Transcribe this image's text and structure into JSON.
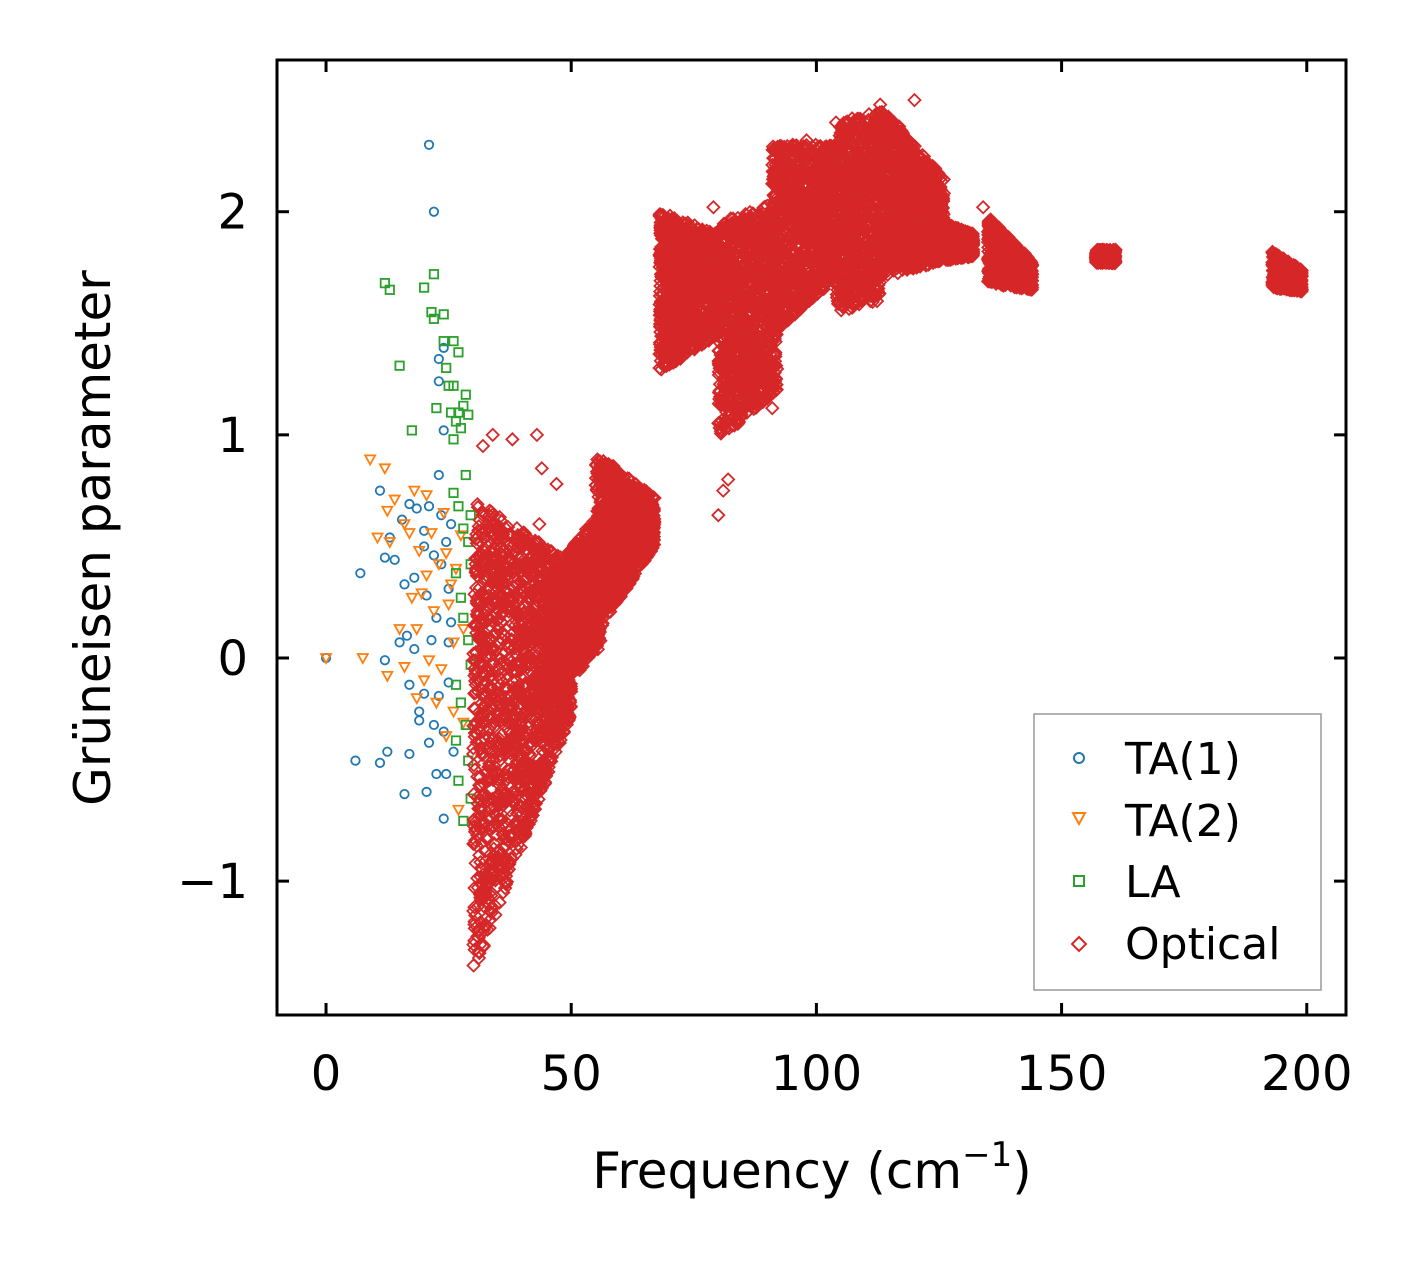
{
  "colors": {
    "TA(1)": "#1f77b4",
    "TA(2)": "#ff7f0e",
    "LA": "#2ca02c",
    "Optical": "#d62728",
    "axis": "#000000",
    "legend_border": "#999999"
  },
  "chart_data": {
    "type": "scatter",
    "title": "",
    "xlabel": "Frequency (cm",
    "xlabel_sup": "−1",
    "xlabel_end": ")",
    "ylabel": "Grüneisen parameter",
    "xlim": [
      -10,
      208
    ],
    "ylim": [
      -1.6,
      2.68
    ],
    "xticks": [
      0,
      50,
      100,
      150,
      200
    ],
    "xtick_labels": [
      "0",
      "50",
      "100",
      "150",
      "200"
    ],
    "yticks": [
      -1,
      0,
      1,
      2
    ],
    "ytick_labels": [
      "−1",
      "0",
      "1",
      "2"
    ],
    "grid": false,
    "legend_position": "bottom-right",
    "series": [
      {
        "name": "TA(1)",
        "marker": "circle",
        "points": [
          [
            0,
            0
          ],
          [
            6,
            -0.46
          ],
          [
            7,
            0.38
          ],
          [
            11,
            -0.47
          ],
          [
            11,
            0.75
          ],
          [
            12,
            -0.01
          ],
          [
            12,
            0.45
          ],
          [
            12.5,
            -0.42
          ],
          [
            13,
            0.54
          ],
          [
            14,
            0.44
          ],
          [
            15,
            0.07
          ],
          [
            15.5,
            0.62
          ],
          [
            16,
            -0.61
          ],
          [
            16,
            0.33
          ],
          [
            16.5,
            0.1
          ],
          [
            17,
            -0.43
          ],
          [
            17,
            -0.12
          ],
          [
            17,
            0.69
          ],
          [
            18,
            0.36
          ],
          [
            18,
            0.04
          ],
          [
            18.5,
            0.67
          ],
          [
            19,
            -0.28
          ],
          [
            19,
            -0.24
          ],
          [
            20,
            0.57
          ],
          [
            20,
            -0.16
          ],
          [
            20,
            0.5
          ],
          [
            20.5,
            -0.6
          ],
          [
            20.5,
            0.28
          ],
          [
            21,
            0.68
          ],
          [
            21,
            2.3
          ],
          [
            21,
            -0.38
          ],
          [
            21.5,
            0.08
          ],
          [
            22,
            2.0
          ],
          [
            22,
            -0.3
          ],
          [
            22,
            0.46
          ],
          [
            22.5,
            -0.52
          ],
          [
            22.5,
            0.18
          ],
          [
            23,
            1.34
          ],
          [
            23,
            1.24
          ],
          [
            23,
            0.82
          ],
          [
            23,
            -0.17
          ],
          [
            23.5,
            0.42
          ],
          [
            23.5,
            0.64
          ],
          [
            24,
            1.39
          ],
          [
            24,
            1.02
          ],
          [
            24,
            -0.33
          ],
          [
            24,
            -0.72
          ],
          [
            24.5,
            0.52
          ],
          [
            24.5,
            -0.52
          ],
          [
            25,
            0.07
          ],
          [
            25,
            0.31
          ],
          [
            25,
            -0.11
          ],
          [
            25.5,
            0.6
          ],
          [
            25.5,
            0.16
          ],
          [
            26,
            -0.42
          ]
        ]
      },
      {
        "name": "TA(2)",
        "marker": "triangle-down",
        "points": [
          [
            0,
            0
          ],
          [
            7.5,
            0
          ],
          [
            9,
            0.89
          ],
          [
            10.5,
            0.54
          ],
          [
            12,
            0.85
          ],
          [
            12.5,
            -0.08
          ],
          [
            12.5,
            0.66
          ],
          [
            13,
            0.52
          ],
          [
            14,
            0.71
          ],
          [
            15,
            0.13
          ],
          [
            16,
            0.6
          ],
          [
            16,
            -0.04
          ],
          [
            17,
            0.56
          ],
          [
            17.5,
            0.27
          ],
          [
            18,
            0.75
          ],
          [
            18.5,
            -0.18
          ],
          [
            18.5,
            0.13
          ],
          [
            19,
            0.48
          ],
          [
            19.5,
            0.29
          ],
          [
            20,
            -0.1
          ],
          [
            20.5,
            0.73
          ],
          [
            20.5,
            0.37
          ],
          [
            21,
            -0.01
          ],
          [
            21.5,
            0.56
          ],
          [
            22,
            0.21
          ],
          [
            22.5,
            -0.2
          ],
          [
            23,
            0.42
          ],
          [
            23.5,
            -0.05
          ],
          [
            24,
            0.65
          ],
          [
            24.5,
            0.47
          ],
          [
            24.5,
            -0.35
          ],
          [
            25,
            0.24
          ],
          [
            25.5,
            0.33
          ],
          [
            26,
            0.07
          ],
          [
            26,
            -0.24
          ],
          [
            26.5,
            0.4
          ],
          [
            27,
            -0.68
          ],
          [
            27.5,
            0.55
          ],
          [
            28,
            0.13
          ],
          [
            28,
            -0.29
          ]
        ]
      },
      {
        "name": "LA",
        "marker": "square",
        "points": [
          [
            12,
            1.68
          ],
          [
            13,
            1.65
          ],
          [
            15,
            1.31
          ],
          [
            17.5,
            1.02
          ],
          [
            20,
            1.66
          ],
          [
            21.5,
            1.55
          ],
          [
            22,
            1.72
          ],
          [
            22,
            1.52
          ],
          [
            22.5,
            1.12
          ],
          [
            24,
            1.54
          ],
          [
            24,
            1.42
          ],
          [
            24.5,
            1.3
          ],
          [
            25,
            1.22
          ],
          [
            25.5,
            1.1
          ],
          [
            26,
            1.42
          ],
          [
            26,
            1.22
          ],
          [
            26,
            0.98
          ],
          [
            26.5,
            1.06
          ],
          [
            27,
            1.37
          ],
          [
            27,
            1.1
          ],
          [
            27.5,
            1.03
          ],
          [
            28,
            1.13
          ],
          [
            28.5,
            1.18
          ],
          [
            28.5,
            0.82
          ],
          [
            29,
            1.09
          ],
          [
            26,
            0.74
          ],
          [
            27,
            0.68
          ],
          [
            28,
            0.58
          ],
          [
            29,
            0.52
          ],
          [
            29.5,
            0.42
          ],
          [
            26.5,
            0.38
          ],
          [
            27.5,
            0.27
          ],
          [
            28,
            0.18
          ],
          [
            29,
            0.08
          ],
          [
            29.5,
            -0.03
          ],
          [
            26.5,
            -0.12
          ],
          [
            27.5,
            -0.2
          ],
          [
            28.5,
            -0.3
          ],
          [
            29,
            -0.46
          ],
          [
            29.5,
            -0.63
          ],
          [
            27,
            -0.55
          ],
          [
            28,
            -0.73
          ],
          [
            26.5,
            -0.37
          ],
          [
            29.5,
            0.64
          ]
        ]
      },
      {
        "name": "Optical",
        "marker": "diamond",
        "points": [
          [
            32,
            0.95
          ],
          [
            34,
            1.0
          ],
          [
            38,
            0.98
          ],
          [
            43,
            1.0
          ],
          [
            44,
            0.85
          ],
          [
            47,
            0.78
          ],
          [
            43.5,
            0.6
          ],
          [
            80,
            0.64
          ],
          [
            81,
            0.75
          ],
          [
            82,
            0.8
          ],
          [
            91,
            1.12
          ],
          [
            84,
            1.05
          ],
          [
            85,
            1.12
          ],
          [
            88,
            1.38
          ],
          [
            93,
            1.52
          ],
          [
            79,
            2.02
          ],
          [
            78,
            1.7
          ],
          [
            92,
            2.0
          ],
          [
            98,
            2.32
          ],
          [
            104,
            2.4
          ],
          [
            113,
            2.48
          ],
          [
            120,
            2.5
          ],
          [
            159,
            1.8
          ],
          [
            134,
            2.02
          ],
          [
            138,
            1.88
          ],
          [
            142,
            1.75
          ],
          [
            144,
            1.66
          ],
          [
            193,
            1.82
          ],
          [
            198,
            1.66
          ]
        ],
        "clouds": [
          {
            "x": [
              30,
              50
            ],
            "y_lo": -1.42,
            "y_hi": 0.72,
            "y_lo_end": -0.25,
            "y_hi_end": 0.42
          },
          {
            "x": [
              45,
              56
            ],
            "y_lo": -0.22,
            "y_hi": 0.35,
            "y_lo_end": 0.05,
            "y_hi_end": 0.66
          },
          {
            "x": [
              55,
              67
            ],
            "y_lo": 0.1,
            "y_hi": 0.92,
            "y_lo_end": 0.5,
            "y_hi_end": 0.72
          },
          {
            "x": [
              68,
              80
            ],
            "y_lo": 1.28,
            "y_hi": 2.0,
            "y_lo_end": 1.45,
            "y_hi_end": 1.9
          },
          {
            "x": [
              80,
              92
            ],
            "y_lo": 0.98,
            "y_hi": 1.95,
            "y_lo_end": 1.2,
            "y_hi_end": 2.05
          },
          {
            "x": [
              91,
              104
            ],
            "y_lo": 1.45,
            "y_hi": 2.3,
            "y_lo_end": 1.7,
            "y_hi_end": 2.3
          },
          {
            "x": [
              104,
              113
            ],
            "y_lo": 1.55,
            "y_hi": 2.4,
            "y_lo_end": 1.6,
            "y_hi_end": 2.45
          },
          {
            "x": [
              113,
              126
            ],
            "y_lo": 1.7,
            "y_hi": 2.48,
            "y_lo_end": 1.78,
            "y_hi_end": 2.15
          },
          {
            "x": [
              126,
              132
            ],
            "y_lo": 1.78,
            "y_hi": 1.95,
            "y_lo_end": 1.8,
            "y_hi_end": 1.9
          },
          {
            "x": [
              135,
              144
            ],
            "y_lo": 1.68,
            "y_hi": 1.98,
            "y_lo_end": 1.65,
            "y_hi_end": 1.78
          },
          {
            "x": [
              157,
              161
            ],
            "y_lo": 1.77,
            "y_hi": 1.83,
            "y_lo_end": 1.77,
            "y_hi_end": 1.83
          },
          {
            "x": [
              193,
              199
            ],
            "y_lo": 1.66,
            "y_hi": 1.82,
            "y_lo_end": 1.64,
            "y_hi_end": 1.74
          }
        ]
      }
    ]
  }
}
